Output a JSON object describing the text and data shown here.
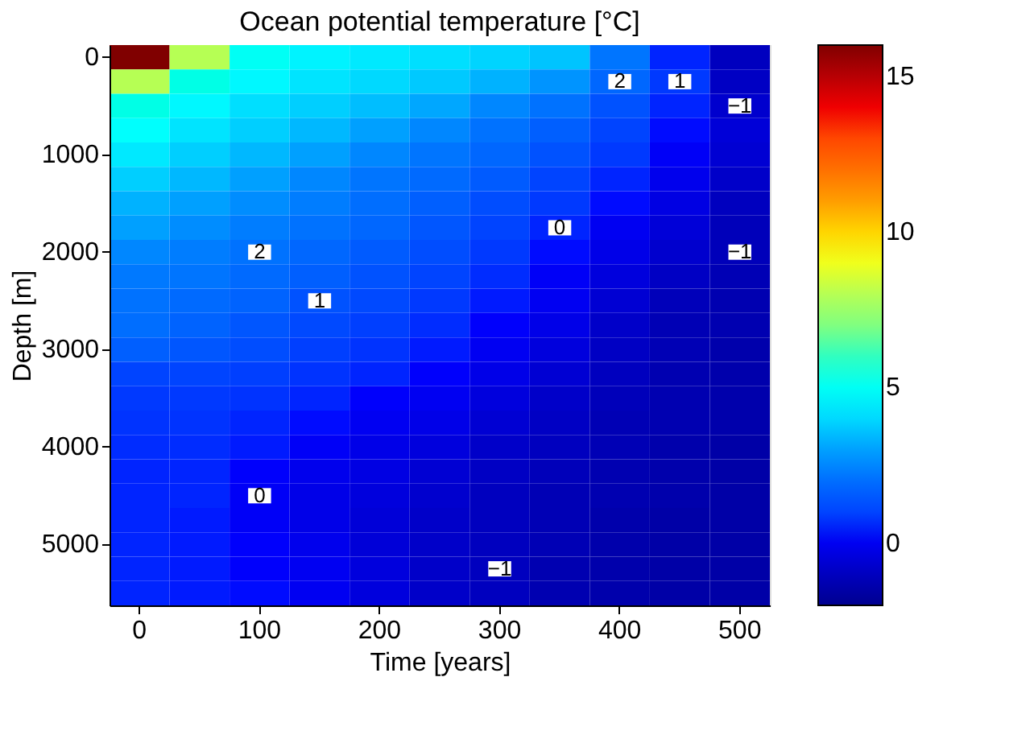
{
  "chart_data": {
    "type": "heatmap",
    "title": "Ocean potential temperature [°C]",
    "xlabel": "Time [years]",
    "ylabel": "Depth [m]",
    "categories": [
      "0",
      null,
      "100",
      null,
      "200",
      null,
      "300",
      null,
      "400",
      null,
      "500"
    ],
    "y_categories": [
      "0",
      null,
      null,
      null,
      "1000",
      null,
      null,
      null,
      "2000",
      null,
      null,
      null,
      "3000",
      null,
      null,
      null,
      "4000",
      null,
      null,
      null,
      "5000",
      null,
      null
    ],
    "cells": [
      [
        16,
        8,
        5,
        4.5,
        4.3,
        4.1,
        3.9,
        3.6,
        2.2,
        0.5,
        -1
      ],
      [
        8,
        5.3,
        4.6,
        4.2,
        4,
        3.7,
        3.3,
        2.8,
        1.8,
        0.8,
        -0.9
      ],
      [
        5.3,
        4.6,
        4.1,
        3.8,
        3.5,
        3.1,
        2.6,
        2.1,
        1.3,
        0.5,
        -0.7
      ],
      [
        4.8,
        4.2,
        3.8,
        3.4,
        3,
        2.6,
        2.1,
        1.6,
        1,
        0.3,
        -0.5
      ],
      [
        4.3,
        3.8,
        3.4,
        3,
        2.6,
        2.2,
        1.8,
        1.3,
        0.8,
        0.1,
        -0.6
      ],
      [
        3.8,
        3.4,
        3,
        2.6,
        2.2,
        1.9,
        1.5,
        1,
        0.5,
        -0.1,
        -0.8
      ],
      [
        3.3,
        3,
        2.7,
        2.4,
        2,
        1.6,
        1.2,
        0.8,
        0.3,
        -0.3,
        -1
      ],
      [
        3,
        2.7,
        2.4,
        2.1,
        1.8,
        1.4,
        1,
        0.5,
        0,
        -0.5,
        -1.1
      ],
      [
        2.6,
        2.4,
        2.1,
        1.8,
        1.5,
        1.2,
        0.8,
        0.3,
        -0.2,
        -0.7,
        -1.1
      ],
      [
        2.3,
        2.2,
        1.9,
        1.6,
        1.3,
        1,
        0.6,
        0.1,
        -0.4,
        -0.9,
        -1.2
      ],
      [
        2.1,
        1.9,
        1.7,
        1.3,
        1.1,
        0.8,
        0.4,
        0,
        -0.6,
        -1.1,
        -1.3
      ],
      [
        2,
        1.7,
        1.4,
        1.1,
        0.9,
        0.6,
        0.2,
        -0.2,
        -0.8,
        -1.2,
        -1.3
      ],
      [
        1.6,
        1.4,
        1.2,
        0.9,
        0.7,
        0.4,
        0,
        -0.4,
        -0.9,
        -1.2,
        -1.4
      ],
      [
        1,
        1,
        0.9,
        0.7,
        0.5,
        0.2,
        -0.2,
        -0.6,
        -1,
        -1.3,
        -1.4
      ],
      [
        0.8,
        0.8,
        0.7,
        0.5,
        0.2,
        0,
        -0.4,
        -0.8,
        -1.1,
        -1.3,
        -1.4
      ],
      [
        0.7,
        0.7,
        0.5,
        0.3,
        0,
        -0.2,
        -0.6,
        -0.9,
        -1.2,
        -1.3,
        -1.4
      ],
      [
        0.6,
        0.6,
        0.4,
        0.1,
        -0.2,
        -0.4,
        -0.8,
        -1,
        -1.2,
        -1.4,
        -1.5
      ],
      [
        0.5,
        0.5,
        0.2,
        -0.1,
        -0.3,
        -0.6,
        -0.9,
        -1.1,
        -1.3,
        -1.4,
        -1.5
      ],
      [
        0.5,
        0.5,
        0.1,
        -0.2,
        -0.4,
        -0.7,
        -1,
        -1.2,
        -1.3,
        -1.4,
        -1.5
      ],
      [
        0.5,
        0.4,
        0.1,
        -0.2,
        -0.5,
        -0.8,
        -1,
        -1.2,
        -1.4,
        -1.5,
        -1.5
      ],
      [
        0.5,
        0.4,
        0.2,
        -0.1,
        -0.5,
        -0.8,
        -1,
        -1.2,
        -1.4,
        -1.5,
        -1.5
      ],
      [
        0.5,
        0.4,
        0.2,
        0,
        -0.4,
        -0.8,
        -1,
        -1.3,
        -1.4,
        -1.5,
        -1.5
      ],
      [
        0.5,
        0.4,
        0.3,
        0,
        -0.4,
        -0.8,
        -1,
        -1.3,
        -1.4,
        -1.5,
        -1.5
      ]
    ],
    "cell_labels": [
      [
        null,
        null,
        null,
        null,
        null,
        null,
        null,
        null,
        null,
        null,
        null
      ],
      [
        null,
        null,
        null,
        null,
        null,
        null,
        null,
        null,
        "2",
        "1",
        null
      ],
      [
        null,
        null,
        null,
        null,
        null,
        null,
        null,
        null,
        null,
        null,
        "−1"
      ],
      [
        null,
        null,
        null,
        null,
        null,
        null,
        null,
        null,
        null,
        null,
        null
      ],
      [
        null,
        null,
        null,
        null,
        null,
        null,
        null,
        null,
        null,
        null,
        null
      ],
      [
        null,
        null,
        null,
        null,
        null,
        null,
        null,
        null,
        null,
        null,
        null
      ],
      [
        null,
        null,
        null,
        null,
        null,
        null,
        null,
        null,
        null,
        null,
        null
      ],
      [
        null,
        null,
        null,
        null,
        null,
        null,
        null,
        "0",
        null,
        null,
        null
      ],
      [
        null,
        null,
        "2",
        null,
        null,
        null,
        null,
        null,
        null,
        null,
        "−1"
      ],
      [
        null,
        null,
        null,
        null,
        null,
        null,
        null,
        null,
        null,
        null,
        null
      ],
      [
        null,
        null,
        null,
        "1",
        null,
        null,
        null,
        null,
        null,
        null,
        null
      ],
      [
        null,
        null,
        null,
        null,
        null,
        null,
        null,
        null,
        null,
        null,
        null
      ],
      [
        null,
        null,
        null,
        null,
        null,
        null,
        null,
        null,
        null,
        null,
        null
      ],
      [
        null,
        null,
        null,
        null,
        null,
        null,
        null,
        null,
        null,
        null,
        null
      ],
      [
        null,
        null,
        null,
        null,
        null,
        null,
        null,
        null,
        null,
        null,
        null
      ],
      [
        null,
        null,
        null,
        null,
        null,
        null,
        null,
        null,
        null,
        null,
        null
      ],
      [
        null,
        null,
        null,
        null,
        null,
        null,
        null,
        null,
        null,
        null,
        null
      ],
      [
        null,
        null,
        null,
        null,
        null,
        null,
        null,
        null,
        null,
        null,
        null
      ],
      [
        null,
        null,
        "0",
        null,
        null,
        null,
        null,
        null,
        null,
        null,
        null
      ],
      [
        null,
        null,
        null,
        null,
        null,
        null,
        null,
        null,
        null,
        null,
        null
      ],
      [
        null,
        null,
        null,
        null,
        null,
        null,
        null,
        null,
        null,
        null,
        null
      ],
      [
        null,
        null,
        null,
        null,
        null,
        null,
        "−1",
        null,
        null,
        null,
        null
      ],
      [
        null,
        null,
        null,
        null,
        null,
        null,
        null,
        null,
        null,
        null,
        null
      ]
    ],
    "clim": [
      -2,
      16
    ],
    "cticks": [
      0,
      5,
      10,
      15
    ]
  }
}
